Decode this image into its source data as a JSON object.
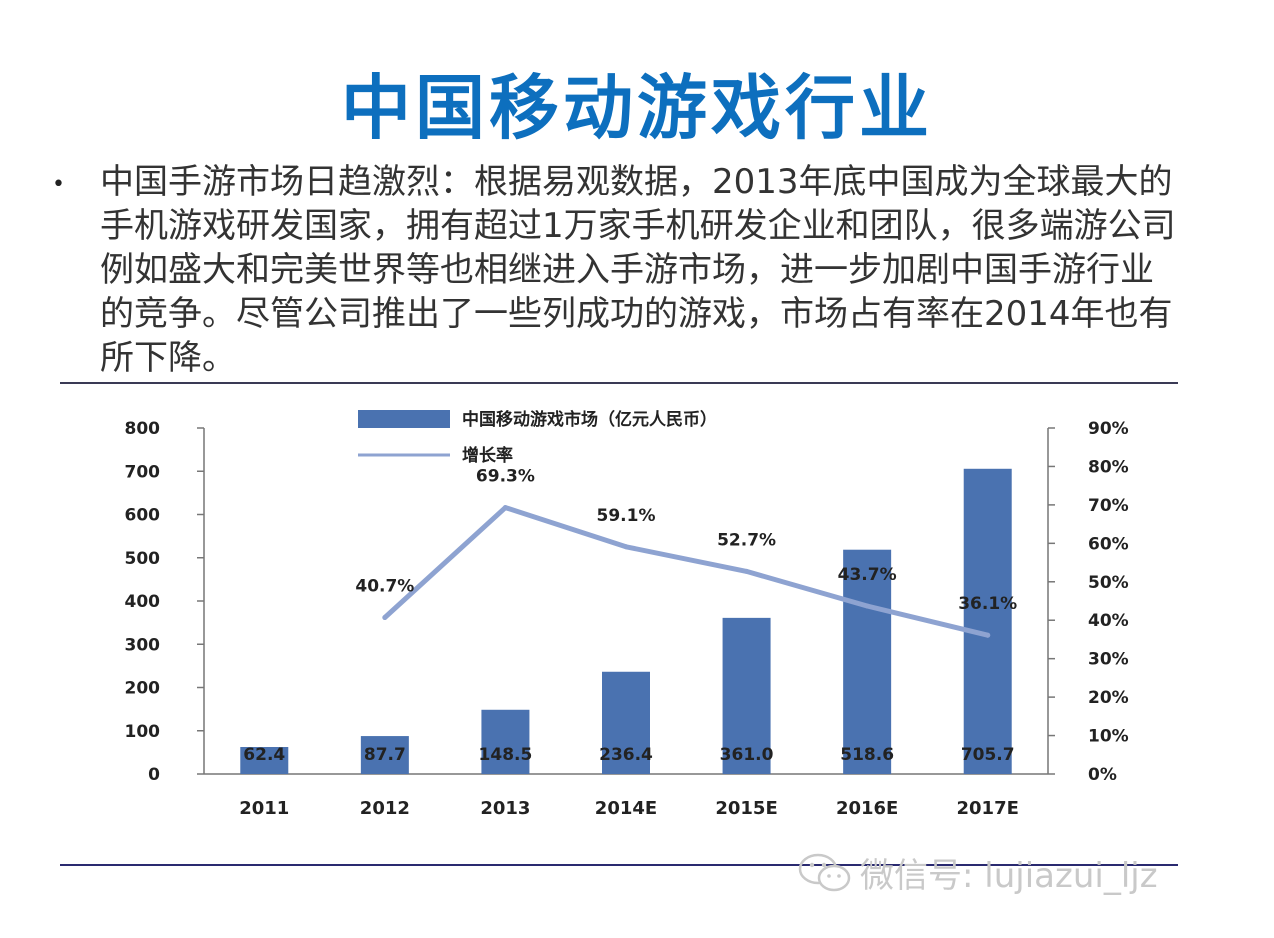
{
  "slide": {
    "title": "中国移动游戏行业",
    "bullet_text": "中国手游市场日趋激烈：根据易观数据，2013年底中国成为全球最大的手机游戏研发国家，拥有超过1万家手机研发企业和团队，很多端游公司例如盛大和完美世界等也相继进入手游市场，进一步加剧中国手游行业的竞争。尽管公司推出了一些列成功的游戏，市场占有率在2014年也有所下降。"
  },
  "watermark": {
    "text": "微信号: lujiazui_ljz",
    "icon": "wechat-icon"
  },
  "chart_data": {
    "type": "bar",
    "categories": [
      "2011",
      "2012",
      "2013",
      "2014E",
      "2015E",
      "2016E",
      "2017E"
    ],
    "series": [
      {
        "name": "中国移动游戏市场（亿元人民币）",
        "type": "bar",
        "axis": "left",
        "values": [
          62.4,
          87.7,
          148.5,
          236.4,
          361.0,
          518.6,
          705.7
        ],
        "labels": [
          "62.4",
          "87.7",
          "148.5",
          "236.4",
          "361.0",
          "518.6",
          "705.7"
        ]
      },
      {
        "name": "增长率",
        "type": "line",
        "axis": "right",
        "values": [
          null,
          40.7,
          69.3,
          59.1,
          52.7,
          43.7,
          36.1
        ],
        "labels": [
          "",
          "40.7%",
          "69.3%",
          "59.1%",
          "52.7%",
          "43.7%",
          "36.1%"
        ]
      }
    ],
    "y_left": {
      "min": 0,
      "max": 800,
      "ticks": [
        "0",
        "100",
        "200",
        "300",
        "400",
        "500",
        "600",
        "700",
        "800"
      ]
    },
    "y_right": {
      "min": 0,
      "max": 90,
      "ticks": [
        "0%",
        "10%",
        "20%",
        "30%",
        "40%",
        "50%",
        "60%",
        "70%",
        "80%",
        "90%"
      ]
    },
    "legend_position": "top",
    "grid": false,
    "colors": {
      "bar": "#4a72b0",
      "line": "#8ea3d1",
      "text": "#222222"
    }
  }
}
